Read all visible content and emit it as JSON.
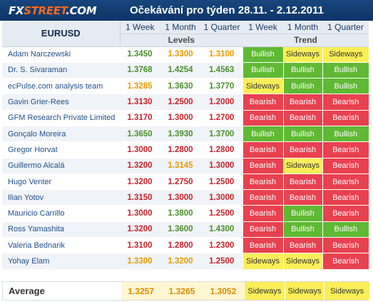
{
  "header": {
    "logo_prefix": "FX",
    "logo_main": "STREET",
    "logo_suffix": ".COM",
    "title": "Očekávání pro týden 28.11. - 2.12.2011"
  },
  "table": {
    "pair": "EURUSD",
    "level_cols": [
      "1 Week",
      "1 Month",
      "1 Quarter"
    ],
    "trend_cols": [
      "1 Week",
      "1 Month",
      "1 Quarter"
    ],
    "levels_label": "Levels",
    "trend_label": "Trend",
    "rows": [
      {
        "name": "Adam Narczewski",
        "levels": [
          "1.3450",
          "1.3300",
          "1.3100"
        ],
        "level_colors": [
          "green",
          "orange",
          "orange"
        ],
        "trends": [
          "Bullish",
          "Sideways",
          "Sideways"
        ]
      },
      {
        "name": "Dr. S. Sivaraman",
        "levels": [
          "1.3768",
          "1.4254",
          "1.4563"
        ],
        "level_colors": [
          "green",
          "green",
          "green"
        ],
        "trends": [
          "Bullish",
          "Bullish",
          "Bullish"
        ]
      },
      {
        "name": "ecPulse.com analysis team",
        "levels": [
          "1.3285",
          "1.3630",
          "1.3770"
        ],
        "level_colors": [
          "orange",
          "green",
          "green"
        ],
        "trends": [
          "Sideways",
          "Bullish",
          "Bullish"
        ]
      },
      {
        "name": "Gavin Grier-Rees",
        "levels": [
          "1.3130",
          "1.2500",
          "1.2000"
        ],
        "level_colors": [
          "red",
          "red",
          "red"
        ],
        "trends": [
          "Bearish",
          "Bearish",
          "Bearish"
        ]
      },
      {
        "name": "GFM Research Private Limited",
        "levels": [
          "1.3170",
          "1.3000",
          "1.2700"
        ],
        "level_colors": [
          "red",
          "red",
          "red"
        ],
        "trends": [
          "Bearish",
          "Bearish",
          "Bearish"
        ]
      },
      {
        "name": "Gonçalo Moreira",
        "levels": [
          "1.3650",
          "1.3930",
          "1.3700"
        ],
        "level_colors": [
          "green",
          "green",
          "green"
        ],
        "trends": [
          "Bullish",
          "Bullish",
          "Bullish"
        ]
      },
      {
        "name": "Gregor Horvat",
        "levels": [
          "1.3000",
          "1.2800",
          "1.2800"
        ],
        "level_colors": [
          "red",
          "red",
          "red"
        ],
        "trends": [
          "Bearish",
          "Bearish",
          "Bearish"
        ]
      },
      {
        "name": "Guillermo Alcalá",
        "levels": [
          "1.3200",
          "1.3145",
          "1.3000"
        ],
        "level_colors": [
          "red",
          "orange",
          "red"
        ],
        "trends": [
          "Bearish",
          "Sideways",
          "Bearish"
        ]
      },
      {
        "name": "Hugo Venter",
        "levels": [
          "1.3200",
          "1.2750",
          "1.2500"
        ],
        "level_colors": [
          "red",
          "red",
          "red"
        ],
        "trends": [
          "Bearish",
          "Bearish",
          "Bearish"
        ]
      },
      {
        "name": "Ilian Yotov",
        "levels": [
          "1.3150",
          "1.3000",
          "1.3000"
        ],
        "level_colors": [
          "red",
          "red",
          "red"
        ],
        "trends": [
          "Bearish",
          "Bearish",
          "Bearish"
        ]
      },
      {
        "name": "Mauricio Carrillo",
        "levels": [
          "1.3000",
          "1.3800",
          "1.2500"
        ],
        "level_colors": [
          "red",
          "green",
          "red"
        ],
        "trends": [
          "Bearish",
          "Bullish",
          "Bearish"
        ]
      },
      {
        "name": "Ross Yamashita",
        "levels": [
          "1.3200",
          "1.3600",
          "1.4300"
        ],
        "level_colors": [
          "red",
          "green",
          "green"
        ],
        "trends": [
          "Bearish",
          "Bullish",
          "Bullish"
        ]
      },
      {
        "name": "Valeria Bednarik",
        "levels": [
          "1.3100",
          "1.2800",
          "1.2300"
        ],
        "level_colors": [
          "red",
          "red",
          "red"
        ],
        "trends": [
          "Bearish",
          "Bearish",
          "Bearish"
        ]
      },
      {
        "name": "Yohay Elam",
        "levels": [
          "1.3300",
          "1.3200",
          "1.2500"
        ],
        "level_colors": [
          "orange",
          "orange",
          "red"
        ],
        "trends": [
          "Sideways",
          "Sideways",
          "Bearish"
        ]
      }
    ]
  },
  "average": {
    "label": "Average",
    "levels": [
      "1.3257",
      "1.3265",
      "1.3052"
    ],
    "trends": [
      "Sideways",
      "Sideways",
      "Sideways"
    ]
  },
  "colors": {
    "bullish": "#5fb934",
    "bearish": "#e8414f",
    "sideways": "#fbee57",
    "header_bg": "#17467d",
    "logo_accent": "#ff6a1a"
  }
}
